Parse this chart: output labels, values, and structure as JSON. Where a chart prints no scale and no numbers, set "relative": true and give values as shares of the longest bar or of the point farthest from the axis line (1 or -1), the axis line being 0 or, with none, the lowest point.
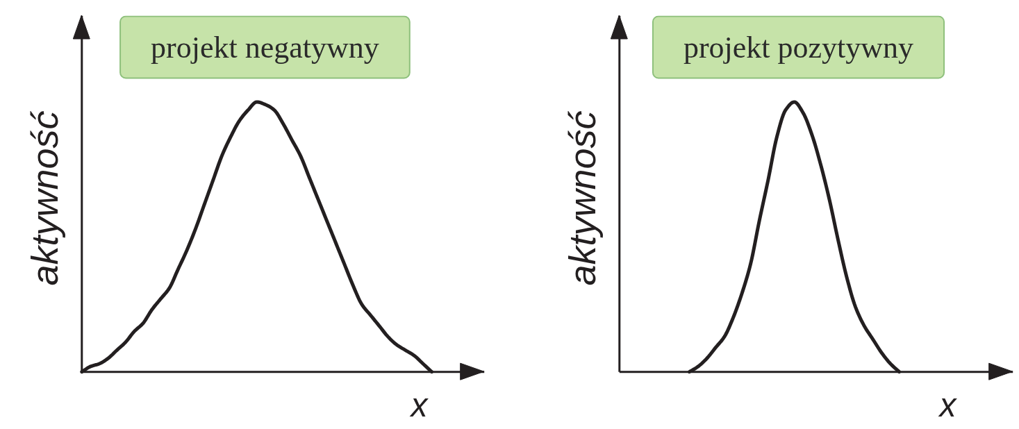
{
  "chart_data": [
    {
      "type": "line",
      "title": "projekt negatywny",
      "ylabel": "aktywność",
      "xlabel": "x",
      "relative": true,
      "tick_labels": false,
      "grid": false,
      "categories": [
        null,
        null,
        null,
        null,
        null,
        null,
        null,
        null,
        null,
        null,
        null,
        null,
        null,
        null,
        null,
        null,
        null,
        null,
        null,
        null,
        null,
        null,
        null,
        null,
        null,
        null,
        null,
        null,
        null,
        null,
        null,
        null,
        null,
        null,
        null,
        null,
        null,
        null,
        null,
        null,
        null,
        null,
        null,
        null,
        null,
        null,
        null
      ],
      "series": [
        {
          "color": "#231f20",
          "values": [
            0,
            0.02,
            0.03,
            0.05,
            0.08,
            0.11,
            0.15,
            0.18,
            0.23,
            0.27,
            0.31,
            0.38,
            0.45,
            0.53,
            0.62,
            0.71,
            0.8,
            0.87,
            0.93,
            0.97,
            1,
            0.99,
            0.97,
            0.92,
            0.86,
            0.8,
            0.72,
            0.64,
            0.56,
            0.48,
            0.4,
            0.32,
            0.25,
            0.21,
            0.17,
            0.13,
            0.1,
            0.08,
            0.06,
            0.03,
            0,
            null,
            null,
            null,
            null,
            null,
            null
          ]
        }
      ]
    },
    {
      "type": "line",
      "title": "projekt pozytywny",
      "ylabel": "aktywność",
      "xlabel": "x",
      "relative": true,
      "tick_labels": false,
      "grid": false,
      "categories": [
        null,
        null,
        null,
        null,
        null,
        null,
        null,
        null,
        null,
        null,
        null,
        null,
        null,
        null,
        null,
        null,
        null,
        null,
        null,
        null,
        null,
        null,
        null,
        null,
        null,
        null,
        null,
        null,
        null,
        null,
        null,
        null,
        null,
        null,
        null,
        null,
        null,
        null,
        null,
        null,
        null,
        null,
        null,
        null,
        null,
        null
      ],
      "series": [
        {
          "color": "#231f20",
          "values": [
            null,
            null,
            null,
            null,
            null,
            null,
            null,
            null,
            0,
            0.02,
            0.05,
            0.09,
            0.13,
            0.2,
            0.29,
            0.4,
            0.56,
            0.71,
            0.87,
            0.97,
            1,
            0.96,
            0.88,
            0.77,
            0.64,
            0.49,
            0.35,
            0.24,
            0.17,
            0.12,
            0.07,
            0.03,
            0,
            null,
            null,
            null,
            null,
            null,
            null,
            null,
            null,
            null,
            null,
            null,
            null,
            null
          ]
        }
      ]
    }
  ]
}
